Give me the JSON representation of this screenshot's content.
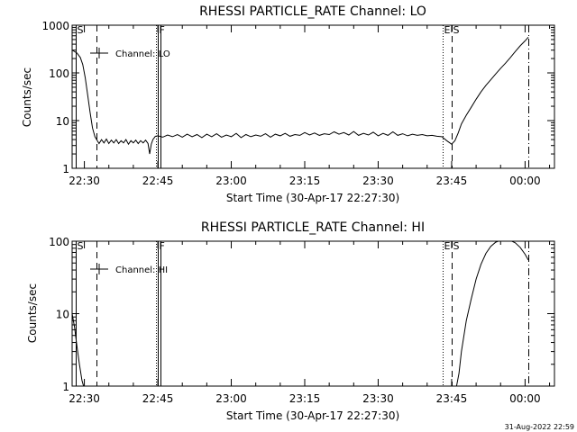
{
  "footer": {
    "timestamp": "31-Aug-2022 22:59"
  },
  "chart_data": [
    {
      "type": "line",
      "title": "RHESSI PARTICLE_RATE Channel: LO",
      "xlabel": "Start Time (30-Apr-17 22:27:30)",
      "ylabel": "Counts/sec",
      "y_scale": "log",
      "xlim": [
        "22:27:30",
        "00:06:00"
      ],
      "ylim": [
        1,
        1000
      ],
      "xticks": [
        "22:30",
        "22:45",
        "23:00",
        "23:15",
        "23:30",
        "23:45",
        "00:00"
      ],
      "yticks": [
        "1",
        "10",
        "100",
        "1000"
      ],
      "legend": {
        "label": "Channel: LO",
        "placement": "top-left"
      },
      "markers": [
        {
          "label": "S",
          "time": "22:28:15",
          "style": "solid"
        },
        {
          "label": "",
          "time": "22:32:30",
          "style": "dashed"
        },
        {
          "label": "",
          "time": "22:44:40",
          "style": "dotted"
        },
        {
          "label": "F",
          "time": "22:45:00",
          "style": "solid"
        },
        {
          "label": "",
          "time": "22:45:30",
          "style": "solid"
        },
        {
          "label": "E",
          "time": "23:43:05",
          "style": "dotted"
        },
        {
          "label": "S",
          "time": "23:45:00",
          "style": "dashed"
        },
        {
          "label": "",
          "time": "00:00:40",
          "style": "dashdot"
        }
      ],
      "series": [
        {
          "name": "Channel: LO",
          "points": [
            [
              "22:27:30",
              300
            ],
            [
              "22:28:30",
              260
            ],
            [
              "22:29:10",
              210
            ],
            [
              "22:29:40",
              150
            ],
            [
              "22:30:10",
              80
            ],
            [
              "22:30:40",
              35
            ],
            [
              "22:31:10",
              15
            ],
            [
              "22:31:40",
              7
            ],
            [
              "22:32:10",
              4.6
            ],
            [
              "22:32:30",
              4.0
            ],
            [
              "22:33:00",
              3.3
            ],
            [
              "22:33:30",
              4.0
            ],
            [
              "22:34:00",
              3.4
            ],
            [
              "22:34:30",
              4.1
            ],
            [
              "22:35:00",
              3.3
            ],
            [
              "22:35:30",
              3.9
            ],
            [
              "22:36:00",
              3.4
            ],
            [
              "22:36:30",
              4.0
            ],
            [
              "22:37:00",
              3.3
            ],
            [
              "22:37:30",
              3.8
            ],
            [
              "22:38:00",
              3.4
            ],
            [
              "22:38:30",
              4.0
            ],
            [
              "22:39:00",
              3.2
            ],
            [
              "22:39:30",
              3.8
            ],
            [
              "22:40:00",
              3.4
            ],
            [
              "22:40:30",
              3.9
            ],
            [
              "22:41:00",
              3.3
            ],
            [
              "22:41:30",
              3.8
            ],
            [
              "22:42:00",
              3.4
            ],
            [
              "22:42:30",
              3.9
            ],
            [
              "22:43:00",
              3.3
            ],
            [
              "22:43:20",
              2.0
            ],
            [
              "22:43:40",
              3.2
            ],
            [
              "22:44:00",
              4.0
            ],
            [
              "22:44:30",
              4.7
            ],
            [
              "22:45:00",
              4.8
            ],
            [
              "22:46:00",
              4.5
            ],
            [
              "22:47:00",
              5.0
            ],
            [
              "22:48:00",
              4.6
            ],
            [
              "22:49:00",
              5.1
            ],
            [
              "22:50:00",
              4.5
            ],
            [
              "22:51:00",
              5.2
            ],
            [
              "22:52:00",
              4.6
            ],
            [
              "22:53:00",
              5.1
            ],
            [
              "22:54:00",
              4.4
            ],
            [
              "22:55:00",
              5.2
            ],
            [
              "22:56:00",
              4.6
            ],
            [
              "22:57:00",
              5.3
            ],
            [
              "22:58:00",
              4.5
            ],
            [
              "22:59:00",
              5.0
            ],
            [
              "23:00:00",
              4.6
            ],
            [
              "23:01:00",
              5.4
            ],
            [
              "23:02:00",
              4.4
            ],
            [
              "23:03:00",
              5.1
            ],
            [
              "23:04:00",
              4.6
            ],
            [
              "23:05:00",
              5.0
            ],
            [
              "23:06:00",
              4.7
            ],
            [
              "23:07:00",
              5.3
            ],
            [
              "23:08:00",
              4.5
            ],
            [
              "23:09:00",
              5.2
            ],
            [
              "23:10:00",
              4.8
            ],
            [
              "23:11:00",
              5.4
            ],
            [
              "23:12:00",
              4.7
            ],
            [
              "23:13:00",
              5.1
            ],
            [
              "23:14:00",
              4.9
            ],
            [
              "23:15:00",
              5.6
            ],
            [
              "23:16:00",
              5.0
            ],
            [
              "23:17:00",
              5.5
            ],
            [
              "23:18:00",
              4.9
            ],
            [
              "23:19:00",
              5.3
            ],
            [
              "23:20:00",
              5.1
            ],
            [
              "23:21:00",
              5.8
            ],
            [
              "23:22:00",
              5.2
            ],
            [
              "23:23:00",
              5.6
            ],
            [
              "23:24:00",
              5.0
            ],
            [
              "23:25:00",
              5.9
            ],
            [
              "23:26:00",
              4.9
            ],
            [
              "23:27:00",
              5.4
            ],
            [
              "23:28:00",
              5.0
            ],
            [
              "23:29:00",
              5.7
            ],
            [
              "23:30:00",
              4.8
            ],
            [
              "23:31:00",
              5.4
            ],
            [
              "23:32:00",
              4.9
            ],
            [
              "23:33:00",
              5.8
            ],
            [
              "23:34:00",
              4.9
            ],
            [
              "23:35:00",
              5.3
            ],
            [
              "23:36:00",
              4.8
            ],
            [
              "23:37:00",
              5.2
            ],
            [
              "23:38:00",
              4.9
            ],
            [
              "23:39:00",
              5.1
            ],
            [
              "23:40:00",
              4.8
            ],
            [
              "23:41:00",
              4.9
            ],
            [
              "23:42:00",
              4.7
            ],
            [
              "23:43:00",
              4.6
            ],
            [
              "23:44:00",
              3.8
            ],
            [
              "23:45:00",
              3.2
            ],
            [
              "23:45:40",
              3.8
            ],
            [
              "23:46:20",
              5.5
            ],
            [
              "23:47:00",
              8.5
            ],
            [
              "23:48:00",
              13
            ],
            [
              "23:49:00",
              19
            ],
            [
              "23:50:00",
              28
            ],
            [
              "23:51:00",
              40
            ],
            [
              "23:52:00",
              55
            ],
            [
              "23:53:00",
              72
            ],
            [
              "23:54:00",
              95
            ],
            [
              "23:55:00",
              125
            ],
            [
              "23:56:00",
              160
            ],
            [
              "23:57:00",
              210
            ],
            [
              "23:58:00",
              280
            ],
            [
              "23:59:00",
              370
            ],
            [
              "00:00:00",
              470
            ],
            [
              "00:00:40",
              560
            ]
          ]
        }
      ]
    },
    {
      "type": "line",
      "title": "RHESSI PARTICLE_RATE Channel: HI",
      "xlabel": "Start Time (30-Apr-17 22:27:30)",
      "ylabel": "Counts/sec",
      "y_scale": "log",
      "xlim": [
        "22:27:30",
        "00:06:00"
      ],
      "ylim": [
        1,
        100
      ],
      "xticks": [
        "22:30",
        "22:45",
        "23:00",
        "23:15",
        "23:30",
        "23:45",
        "00:00"
      ],
      "yticks": [
        "1",
        "10",
        "100"
      ],
      "legend": {
        "label": "Channel: HI",
        "placement": "top-left"
      },
      "markers": [
        {
          "label": "S",
          "time": "22:28:15",
          "style": "solid"
        },
        {
          "label": "",
          "time": "22:32:30",
          "style": "dashed"
        },
        {
          "label": "",
          "time": "22:44:40",
          "style": "dotted"
        },
        {
          "label": "F",
          "time": "22:45:00",
          "style": "solid"
        },
        {
          "label": "",
          "time": "22:45:30",
          "style": "solid"
        },
        {
          "label": "E",
          "time": "23:43:05",
          "style": "dotted"
        },
        {
          "label": "S",
          "time": "23:45:00",
          "style": "dashed"
        },
        {
          "label": "",
          "time": "00:00:40",
          "style": "dashdot"
        }
      ],
      "series": [
        {
          "name": "Channel: HI",
          "points": [
            [
              "22:27:30",
              10
            ],
            [
              "22:28:00",
              6.5
            ],
            [
              "22:28:30",
              3.5
            ],
            [
              "22:29:00",
              2.0
            ],
            [
              "22:29:30",
              1.2
            ],
            [
              "22:29:50",
              1.0
            ]
          ]
        },
        {
          "name": "Channel: HI",
          "points": [
            [
              "23:46:00",
              1.0
            ],
            [
              "23:46:30",
              1.5
            ],
            [
              "23:47:00",
              3.0
            ],
            [
              "23:48:00",
              8
            ],
            [
              "23:49:00",
              16
            ],
            [
              "23:50:00",
              30
            ],
            [
              "23:51:00",
              48
            ],
            [
              "23:52:00",
              68
            ],
            [
              "23:53:00",
              85
            ],
            [
              "23:54:00",
              97
            ],
            [
              "23:55:00",
              103
            ],
            [
              "23:56:00",
              104
            ],
            [
              "23:57:00",
              102
            ],
            [
              "23:58:00",
              95
            ],
            [
              "23:59:00",
              82
            ],
            [
              "00:00:00",
              66
            ],
            [
              "00:00:40",
              55
            ]
          ]
        }
      ]
    }
  ]
}
